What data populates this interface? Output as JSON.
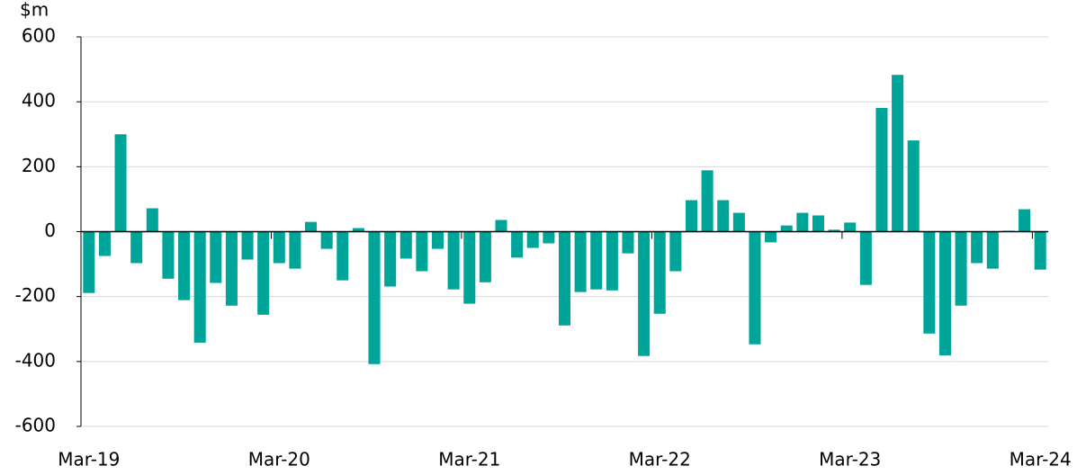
{
  "chart_data": {
    "type": "bar",
    "y_label": "$m",
    "categories": [
      "Mar-19",
      null,
      null,
      null,
      null,
      null,
      null,
      null,
      null,
      null,
      null,
      null,
      "Mar-20",
      null,
      null,
      null,
      null,
      null,
      null,
      null,
      null,
      null,
      null,
      null,
      "Mar-21",
      null,
      null,
      null,
      null,
      null,
      null,
      null,
      null,
      null,
      null,
      null,
      "Mar-22",
      null,
      null,
      null,
      null,
      null,
      null,
      null,
      null,
      null,
      null,
      null,
      "Mar-23",
      null,
      null,
      null,
      null,
      null,
      null,
      null,
      null,
      null,
      null,
      null,
      "Mar-24"
    ],
    "values": [
      -189,
      -75,
      300,
      -97,
      72,
      -145,
      -211,
      -342,
      -158,
      -228,
      -86,
      -256,
      -97,
      -114,
      30,
      -53,
      -150,
      11,
      -408,
      -169,
      -83,
      -122,
      -53,
      -178,
      -222,
      -156,
      36,
      -80,
      -50,
      -36,
      -289,
      -186,
      -178,
      -181,
      -67,
      -383,
      -253,
      -122,
      97,
      189,
      97,
      58,
      -347,
      -33,
      19,
      58,
      50,
      6,
      28,
      -164,
      381,
      483,
      281,
      -314,
      -381,
      -228,
      -97,
      -114,
      3,
      69,
      -117
    ],
    "color": "#00a59a",
    "ylim": [
      -600,
      600
    ],
    "yticks": [
      -600,
      -400,
      -200,
      0,
      200,
      400,
      600
    ],
    "grid": true
  }
}
